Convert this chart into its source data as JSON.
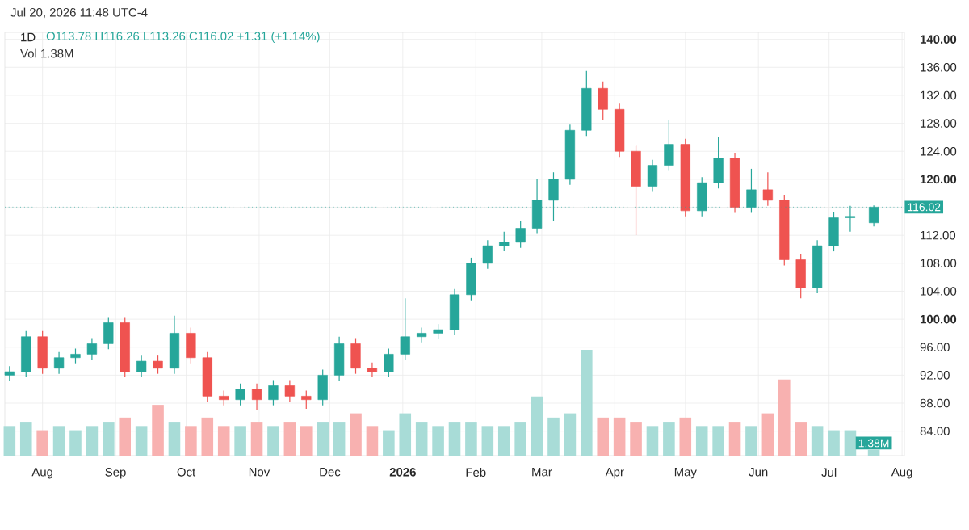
{
  "chart_data": [
    {
      "type": "candlestick",
      "title": "1D",
      "subtitle": "O113.78 H116.26 L113.26 C116.02 +1.31 (+1.14%)",
      "annotations": [
        "Jul 20, 2026 11:48 UTC-4",
        "Vol 1.38M"
      ],
      "x": [
        "2025-07-18",
        "2025-07-25",
        "2025-08-01",
        "2025-08-08",
        "2025-08-15",
        "2025-08-22",
        "2025-08-29",
        "2025-09-05",
        "2025-09-12",
        "2025-09-19",
        "2025-09-26",
        "2025-10-03",
        "2025-10-10",
        "2025-10-17",
        "2025-10-24",
        "2025-10-31",
        "2025-11-07",
        "2025-11-14",
        "2025-11-21",
        "2025-11-28",
        "2025-12-05",
        "2025-12-12",
        "2025-12-19",
        "2025-12-26",
        "2026-01-02",
        "2026-01-09",
        "2026-01-16",
        "2026-01-23",
        "2026-01-30",
        "2026-02-06",
        "2026-02-13",
        "2026-02-20",
        "2026-02-27",
        "2026-03-06",
        "2026-03-13",
        "2026-03-20",
        "2026-03-27",
        "2026-04-03",
        "2026-04-10",
        "2026-04-17",
        "2026-04-24",
        "2026-05-01",
        "2026-05-08",
        "2026-05-15",
        "2026-05-22",
        "2026-05-29",
        "2026-06-05",
        "2026-06-12",
        "2026-06-19",
        "2026-06-26",
        "2026-07-03",
        "2026-07-10",
        "2026-07-20"
      ],
      "ohlc": [
        [
          92,
          93.3,
          91.2,
          92.5
        ],
        [
          92.5,
          98.3,
          91.7,
          97.5
        ],
        [
          97.5,
          98.3,
          92.2,
          93
        ],
        [
          93,
          95.3,
          92.2,
          94.5
        ],
        [
          94.5,
          95.8,
          93.7,
          95
        ],
        [
          95,
          97.3,
          94.2,
          96.5
        ],
        [
          96.5,
          100.3,
          95.7,
          99.5
        ],
        [
          99.5,
          100.3,
          91.7,
          92.5
        ],
        [
          92.5,
          94.8,
          91.7,
          94
        ],
        [
          94,
          94.8,
          92.2,
          93
        ],
        [
          93,
          100.5,
          92.2,
          98
        ],
        [
          98,
          98.8,
          93.7,
          94.5
        ],
        [
          94.5,
          95.3,
          88.2,
          89
        ],
        [
          89,
          89.8,
          87.7,
          88.5
        ],
        [
          88.5,
          90.8,
          87.7,
          90
        ],
        [
          90,
          90.8,
          87,
          88.5
        ],
        [
          88.5,
          91.3,
          87.7,
          90.5
        ],
        [
          90.5,
          91.3,
          88.2,
          89
        ],
        [
          89,
          89.8,
          87.2,
          88.5
        ],
        [
          88.5,
          92.8,
          87.7,
          92
        ],
        [
          92,
          97.5,
          91.2,
          96.5
        ],
        [
          96.5,
          97.3,
          92.2,
          93
        ],
        [
          93,
          93.8,
          91.7,
          92.5
        ],
        [
          92.5,
          95.8,
          91.7,
          95
        ],
        [
          95,
          103,
          94.2,
          97.5
        ],
        [
          97.5,
          98.8,
          96.7,
          98
        ],
        [
          98,
          99.3,
          97.2,
          98.5
        ],
        [
          98.5,
          104.3,
          97.7,
          103.5
        ],
        [
          103.5,
          108.8,
          102.7,
          108
        ],
        [
          108,
          111.3,
          107.2,
          110.5
        ],
        [
          110.5,
          112.5,
          109.7,
          111
        ],
        [
          111,
          114,
          110.2,
          113
        ],
        [
          113,
          120,
          112.2,
          117
        ],
        [
          117,
          121,
          114,
          120
        ],
        [
          120,
          127.8,
          119.2,
          127
        ],
        [
          127,
          135.5,
          126.2,
          133
        ],
        [
          133,
          134,
          128.5,
          130
        ],
        [
          130,
          130.8,
          123.2,
          124
        ],
        [
          124,
          124.8,
          112,
          119
        ],
        [
          119,
          122.8,
          118.2,
          122
        ],
        [
          122,
          128.5,
          121.2,
          125
        ],
        [
          125,
          125.8,
          114.7,
          115.5
        ],
        [
          115.5,
          120.3,
          114.7,
          119.5
        ],
        [
          119.5,
          126,
          118.7,
          123
        ],
        [
          123,
          123.8,
          115.2,
          116
        ],
        [
          116,
          121.5,
          115.2,
          118.5
        ],
        [
          118.5,
          121,
          116.2,
          117
        ],
        [
          117,
          117.8,
          107.7,
          108.5
        ],
        [
          108.5,
          109.3,
          103,
          104.5
        ],
        [
          104.5,
          111.3,
          103.7,
          110.5
        ],
        [
          110.5,
          115.3,
          109.7,
          114.5
        ],
        [
          114.5,
          116.2,
          112.5,
          114.7
        ],
        [
          113.78,
          116.26,
          113.26,
          116.02
        ]
      ],
      "colors": [
        "#26a69a",
        "#26a69a",
        "#ef5350",
        "#26a69a",
        "#26a69a",
        "#26a69a",
        "#26a69a",
        "#ef5350",
        "#26a69a",
        "#ef5350",
        "#26a69a",
        "#ef5350",
        "#ef5350",
        "#ef5350",
        "#26a69a",
        "#ef5350",
        "#26a69a",
        "#ef5350",
        "#ef5350",
        "#26a69a",
        "#26a69a",
        "#ef5350",
        "#ef5350",
        "#26a69a",
        "#26a69a",
        "#26a69a",
        "#26a69a",
        "#26a69a",
        "#26a69a",
        "#26a69a",
        "#26a69a",
        "#26a69a",
        "#26a69a",
        "#26a69a",
        "#26a69a",
        "#26a69a",
        "#ef5350",
        "#ef5350",
        "#ef5350",
        "#26a69a",
        "#26a69a",
        "#ef5350",
        "#26a69a",
        "#26a69a",
        "#ef5350",
        "#26a69a",
        "#ef5350",
        "#ef5350",
        "#ef5350",
        "#26a69a",
        "#26a69a",
        "#26a69a",
        "#26a69a"
      ],
      "xlim": [
        "2025-07-16",
        "2026-08-02"
      ],
      "xticks": [
        {
          "value": "2025-08-01",
          "label": "Aug"
        },
        {
          "value": "2025-09-01",
          "label": "Sep"
        },
        {
          "value": "2025-10-01",
          "label": "Oct"
        },
        {
          "value": "2025-11-01",
          "label": "Nov"
        },
        {
          "value": "2025-12-01",
          "label": "Dec"
        },
        {
          "value": "2026-01-01",
          "label": "**2026**"
        },
        {
          "value": "2026-02-01",
          "label": "Feb"
        },
        {
          "value": "2026-03-01",
          "label": "Mar"
        },
        {
          "value": "2026-04-01",
          "label": "Apr"
        },
        {
          "value": "2026-05-01",
          "label": "May"
        },
        {
          "value": "2026-06-01",
          "label": "Jun"
        },
        {
          "value": "2026-07-01",
          "label": "Jul"
        },
        {
          "value": "2026-08-01",
          "label": "Aug"
        }
      ],
      "ylim": [
        80.5,
        141
      ],
      "yticks": [
        {
          "value": 84,
          "label": "84.00"
        },
        {
          "value": 88,
          "label": "88.00"
        },
        {
          "value": 92,
          "label": "92.00"
        },
        {
          "value": 96,
          "label": "96.00"
        },
        {
          "value": 100,
          "label": "**100.00**"
        },
        {
          "value": 104,
          "label": "104.00"
        },
        {
          "value": 108,
          "label": "108.00"
        },
        {
          "value": 112,
          "label": "112.00"
        },
        {
          "value": 116,
          "label": null
        },
        {
          "value": 120,
          "label": "**120.00**"
        },
        {
          "value": 124,
          "label": "124.00"
        },
        {
          "value": 128,
          "label": "128.00"
        },
        {
          "value": 132,
          "label": "132.00"
        },
        {
          "value": 136,
          "label": "136.00"
        },
        {
          "value": 140,
          "label": "**140.00**"
        }
      ],
      "ref_lines": [
        {
          "axis": "y",
          "value": 116.02,
          "label": "116.02",
          "color": "#26a69a",
          "line_style": "dotted"
        }
      ],
      "grid": true
    },
    {
      "type": "bar",
      "tick_labels": false,
      "x": [
        "2025-07-18",
        "2025-07-25",
        "2025-08-01",
        "2025-08-08",
        "2025-08-15",
        "2025-08-22",
        "2025-08-29",
        "2025-09-05",
        "2025-09-12",
        "2025-09-19",
        "2025-09-26",
        "2025-10-03",
        "2025-10-10",
        "2025-10-17",
        "2025-10-24",
        "2025-10-31",
        "2025-11-07",
        "2025-11-14",
        "2025-11-21",
        "2025-11-28",
        "2025-12-05",
        "2025-12-12",
        "2025-12-19",
        "2025-12-26",
        "2026-01-02",
        "2026-01-09",
        "2026-01-16",
        "2026-01-23",
        "2026-01-30",
        "2026-02-06",
        "2026-02-13",
        "2026-02-20",
        "2026-02-27",
        "2026-03-06",
        "2026-03-13",
        "2026-03-20",
        "2026-03-27",
        "2026-04-03",
        "2026-04-10",
        "2026-04-17",
        "2026-04-24",
        "2026-05-01",
        "2026-05-08",
        "2026-05-15",
        "2026-05-22",
        "2026-05-29",
        "2026-06-05",
        "2026-06-12",
        "2026-06-19",
        "2026-06-26",
        "2026-07-03",
        "2026-07-10",
        "2026-07-20"
      ],
      "xlim": [
        "2025-07-16",
        "2026-08-02"
      ],
      "values": [
        7,
        8,
        6,
        7,
        6,
        7,
        8,
        9,
        7,
        12,
        8,
        7,
        9,
        7,
        7,
        8,
        7,
        8,
        7,
        8,
        8,
        10,
        7,
        6,
        10,
        8,
        7,
        8,
        8,
        7,
        7,
        8,
        14,
        9,
        10,
        25,
        9,
        9,
        8,
        7,
        8,
        9,
        7,
        7,
        8,
        7,
        10,
        18,
        8,
        7,
        6,
        6,
        1.38
      ],
      "value_labels": [
        null,
        null,
        null,
        null,
        null,
        null,
        null,
        null,
        null,
        null,
        null,
        null,
        null,
        null,
        null,
        null,
        null,
        null,
        null,
        null,
        null,
        null,
        null,
        null,
        null,
        null,
        null,
        null,
        null,
        null,
        null,
        null,
        null,
        null,
        null,
        null,
        null,
        null,
        null,
        null,
        null,
        null,
        null,
        null,
        null,
        null,
        null,
        null,
        null,
        null,
        null,
        null,
        "1.38M"
      ],
      "colors": [
        "#a8dcd7",
        "#a8dcd7",
        "#f8b1b0",
        "#a8dcd7",
        "#a8dcd7",
        "#a8dcd7",
        "#a8dcd7",
        "#f8b1b0",
        "#a8dcd7",
        "#f8b1b0",
        "#a8dcd7",
        "#f8b1b0",
        "#f8b1b0",
        "#f8b1b0",
        "#a8dcd7",
        "#f8b1b0",
        "#a8dcd7",
        "#f8b1b0",
        "#f8b1b0",
        "#a8dcd7",
        "#a8dcd7",
        "#f8b1b0",
        "#f8b1b0",
        "#a8dcd7",
        "#a8dcd7",
        "#a8dcd7",
        "#a8dcd7",
        "#a8dcd7",
        "#a8dcd7",
        "#a8dcd7",
        "#a8dcd7",
        "#a8dcd7",
        "#a8dcd7",
        "#a8dcd7",
        "#a8dcd7",
        "#a8dcd7",
        "#f8b1b0",
        "#f8b1b0",
        "#f8b1b0",
        "#a8dcd7",
        "#a8dcd7",
        "#f8b1b0",
        "#a8dcd7",
        "#a8dcd7",
        "#f8b1b0",
        "#a8dcd7",
        "#f8b1b0",
        "#f8b1b0",
        "#f8b1b0",
        "#a8dcd7",
        "#a8dcd7",
        "#a8dcd7",
        "#a8dcd7"
      ]
    }
  ]
}
